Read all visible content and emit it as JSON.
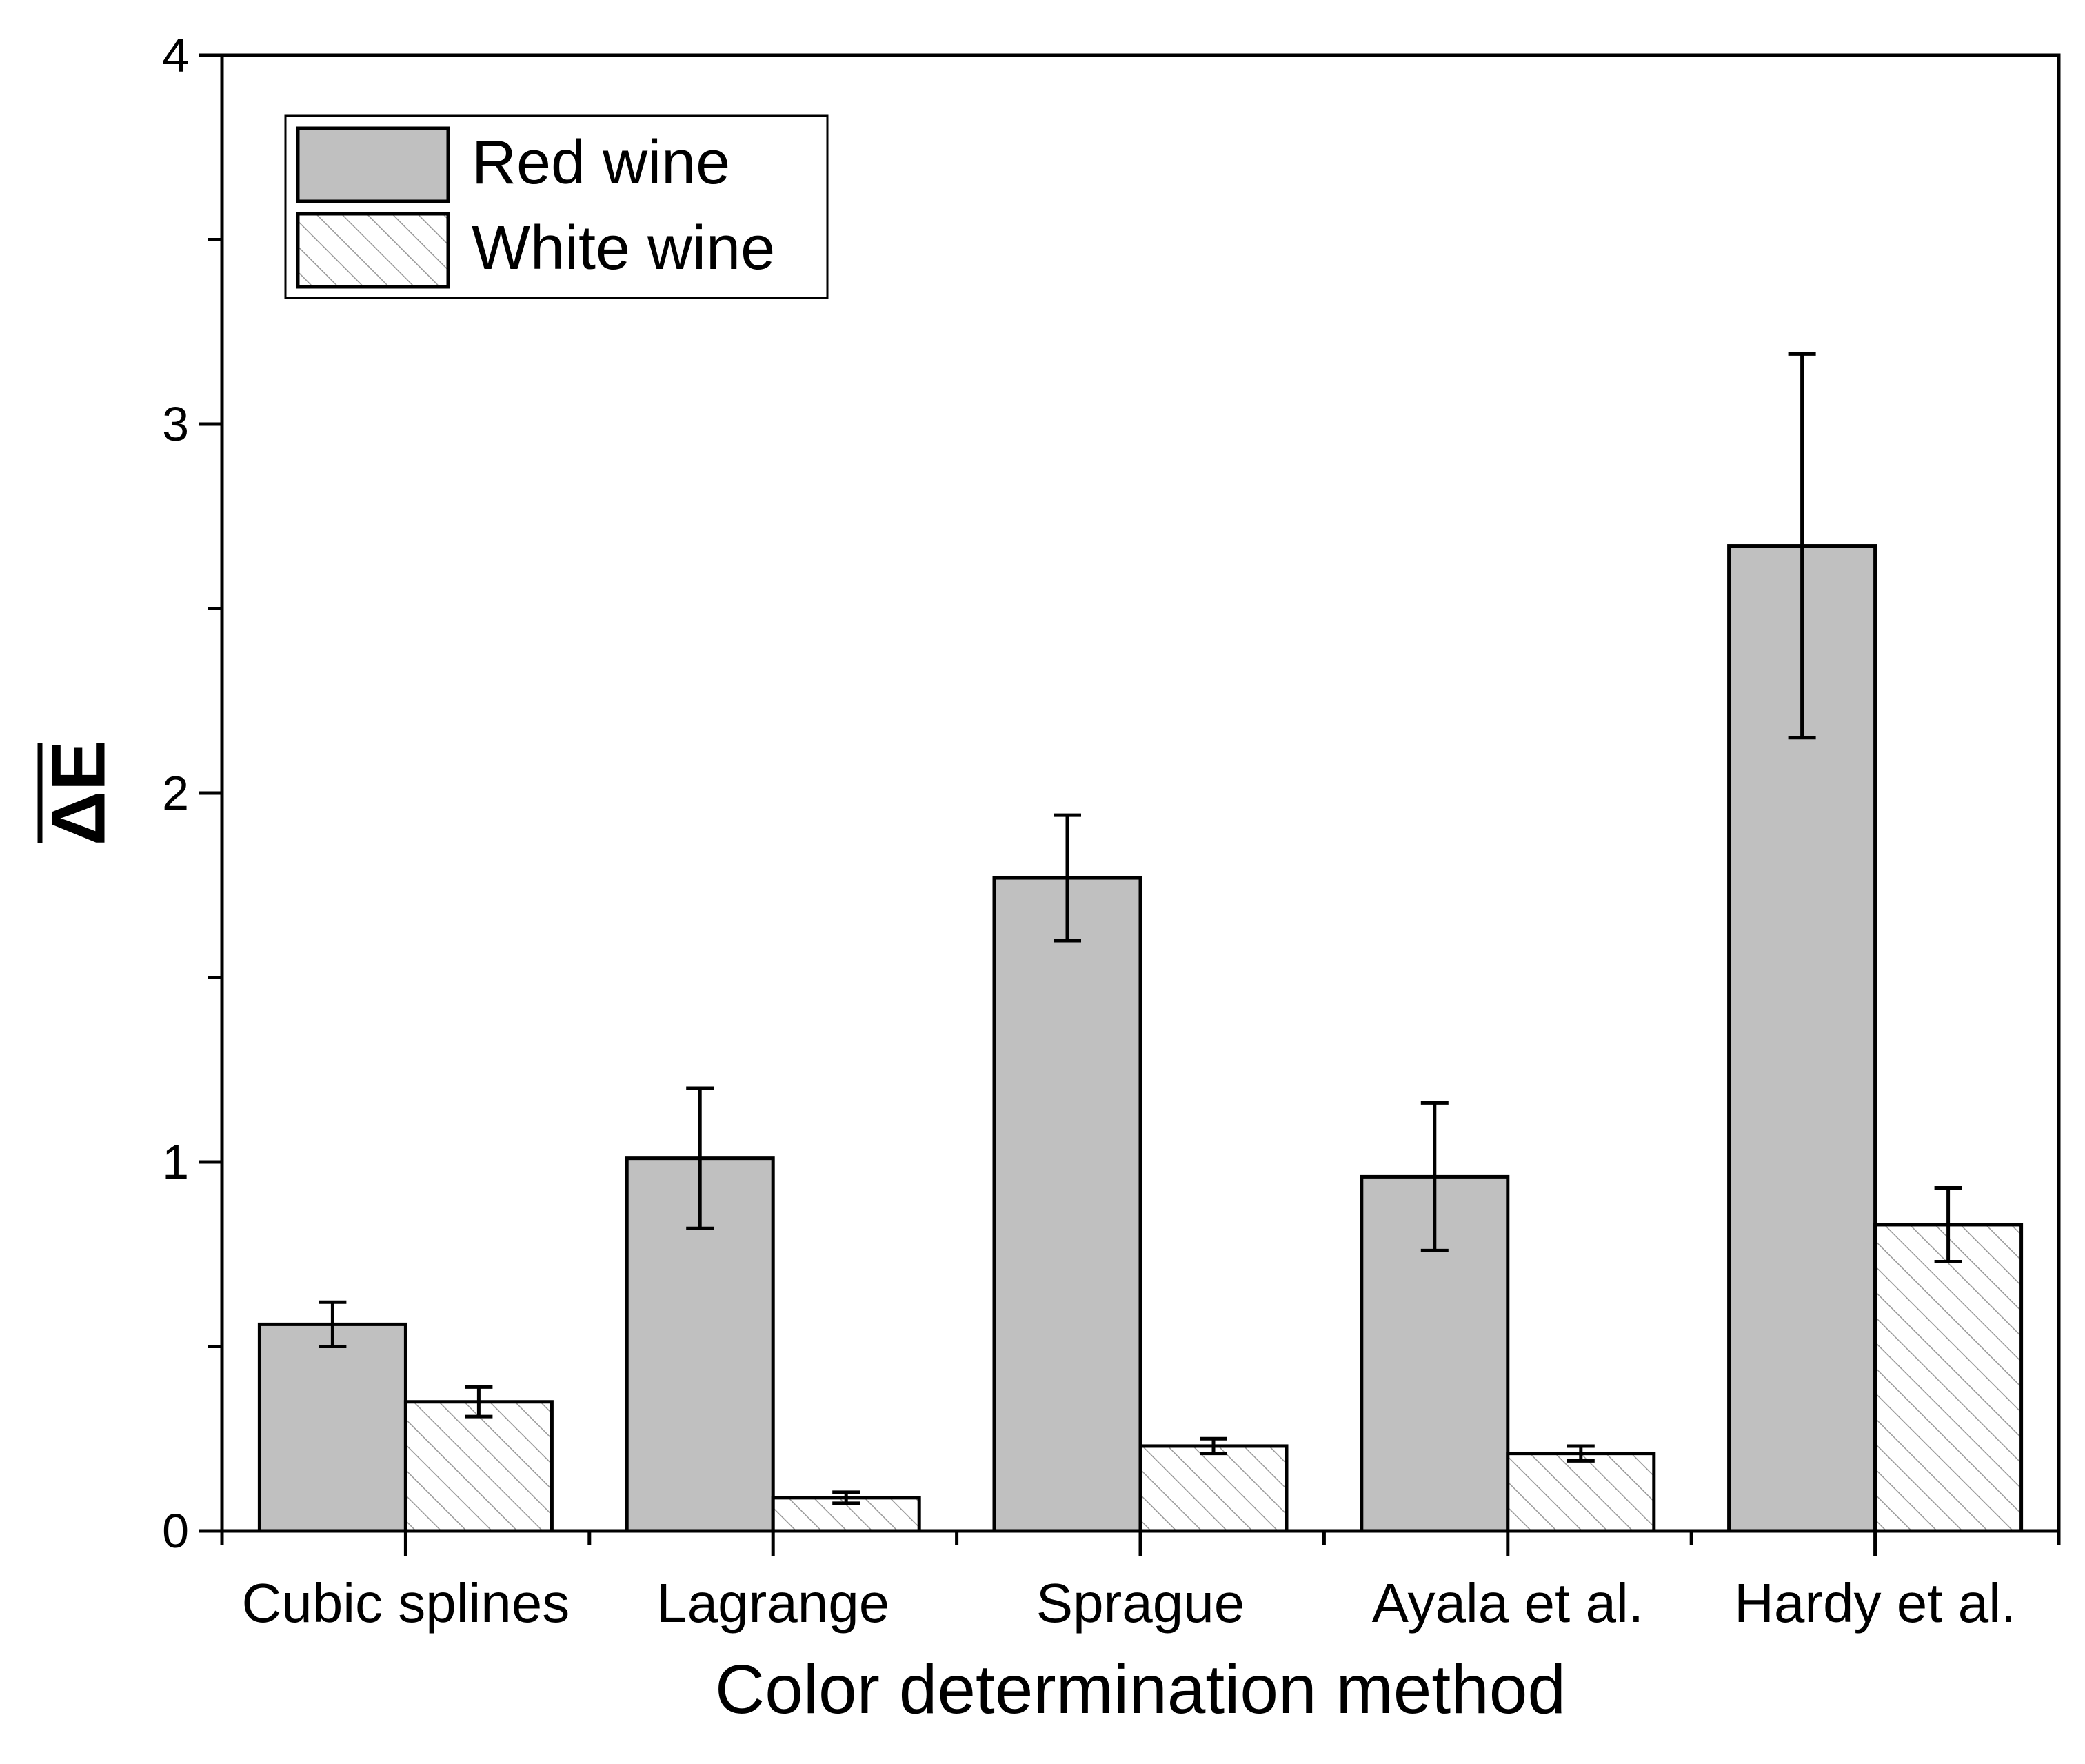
{
  "chart_data": {
    "type": "bar",
    "title": "",
    "xlabel": "Color determination method",
    "ylabel": "ΔE",
    "ylim": [
      0,
      4
    ],
    "yticks": [
      0,
      1,
      2,
      3,
      4
    ],
    "grid": false,
    "legend_position": "top-left",
    "categories": [
      "Cubic splines",
      "Lagrange",
      "Sprague",
      "Ayala et al.",
      "Hardy et al."
    ],
    "series": [
      {
        "name": "Red wine",
        "fill": "#c0c0c0",
        "pattern": "solid",
        "values": [
          0.56,
          1.01,
          1.77,
          0.96,
          2.67
        ],
        "errors": [
          0.06,
          0.19,
          0.17,
          0.2,
          0.52
        ]
      },
      {
        "name": "White wine",
        "fill": "#ffffff",
        "pattern": "hatch",
        "values": [
          0.35,
          0.09,
          0.23,
          0.21,
          0.83
        ],
        "errors": [
          0.04,
          0.015,
          0.02,
          0.02,
          0.1
        ]
      }
    ]
  }
}
